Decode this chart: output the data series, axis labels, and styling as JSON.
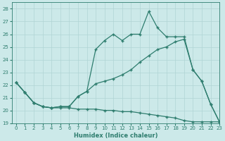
{
  "xlabel": "Humidex (Indice chaleur)",
  "xlim": [
    -0.5,
    23
  ],
  "ylim": [
    19,
    28.5
  ],
  "yticks": [
    19,
    20,
    21,
    22,
    23,
    24,
    25,
    26,
    27,
    28
  ],
  "xticks": [
    0,
    1,
    2,
    3,
    4,
    5,
    6,
    7,
    8,
    9,
    10,
    11,
    12,
    13,
    14,
    15,
    16,
    17,
    18,
    19,
    20,
    21,
    22,
    23
  ],
  "bg_color": "#cce9e9",
  "grid_color": "#b0d4d4",
  "line_color": "#2e7d6e",
  "line1_x": [
    0,
    1,
    2,
    3,
    4,
    5,
    6,
    7,
    8,
    9,
    10,
    11,
    12,
    13,
    14,
    15,
    16,
    17,
    18,
    19,
    20,
    21,
    22,
    23
  ],
  "line1_y": [
    22.2,
    21.4,
    20.6,
    20.3,
    20.2,
    20.2,
    20.2,
    20.1,
    20.1,
    20.1,
    20.0,
    20.0,
    19.9,
    19.9,
    19.8,
    19.7,
    19.6,
    19.5,
    19.4,
    19.2,
    19.1,
    19.1,
    19.1,
    19.1
  ],
  "line2_x": [
    0,
    1,
    2,
    3,
    4,
    5,
    6,
    7,
    8,
    9,
    10,
    11,
    12,
    13,
    14,
    15,
    16,
    17,
    18,
    19,
    20,
    21,
    22,
    23
  ],
  "line2_y": [
    22.2,
    21.4,
    20.6,
    20.3,
    20.2,
    20.3,
    20.3,
    21.1,
    21.5,
    22.1,
    22.3,
    22.5,
    22.8,
    23.2,
    23.8,
    24.3,
    24.8,
    25.0,
    25.4,
    25.6,
    23.2,
    22.3,
    20.5,
    19.1
  ],
  "line3_x": [
    0,
    1,
    2,
    3,
    4,
    5,
    6,
    7,
    8,
    9,
    10,
    11,
    12,
    13,
    14,
    15,
    16,
    17,
    18,
    19,
    20,
    21,
    22,
    23
  ],
  "line3_y": [
    22.2,
    21.4,
    20.6,
    20.3,
    20.2,
    20.3,
    20.3,
    21.1,
    21.5,
    24.8,
    25.5,
    26.0,
    25.5,
    26.0,
    26.0,
    27.8,
    26.5,
    25.8,
    25.8,
    25.8,
    23.2,
    22.3,
    20.5,
    19.1
  ],
  "marker": "+",
  "markersize": 3,
  "linewidth": 0.9
}
